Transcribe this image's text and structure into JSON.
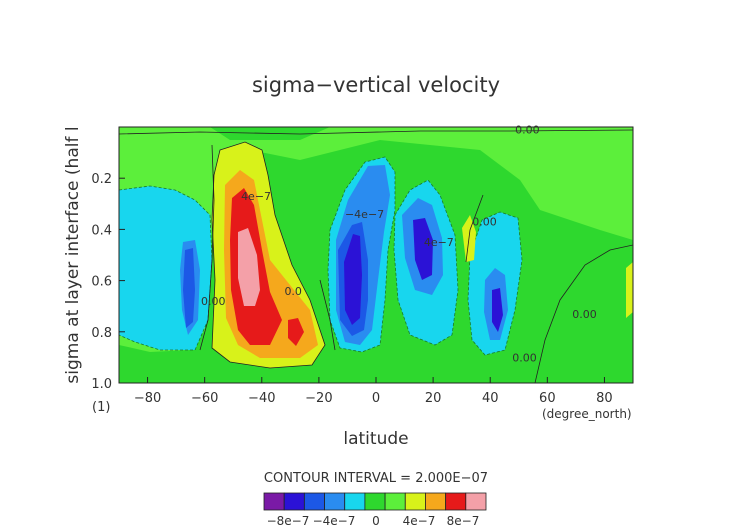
{
  "chart_data": {
    "type": "heatmap",
    "title": "sigma−vertical velocity",
    "xlabel": "latitude",
    "ylabel": "sigma at layer interface (half l",
    "x_unit": "(degree_north)",
    "y_unit": "(1)",
    "xlim": [
      -90,
      90
    ],
    "ylim": [
      1.0,
      0.0
    ],
    "x_ticks": [
      -80,
      -60,
      -40,
      -20,
      0,
      20,
      40,
      60,
      80
    ],
    "x_tick_labels": [
      "−80",
      "−60",
      "−40",
      "−20",
      "0",
      "20",
      "40",
      "60",
      "80"
    ],
    "y_ticks": [
      0.2,
      0.4,
      0.6,
      0.8,
      1.0
    ],
    "y_tick_labels": [
      "0.2",
      "0.4",
      "0.6",
      "0.8",
      "1.0"
    ],
    "contour_interval_text": "CONTOUR INTERVAL = 2.000E−07",
    "contour_interval": 2e-07,
    "colorbar": {
      "colors": [
        "#7a1aa6",
        "#2b12d6",
        "#1c58e6",
        "#2a8cf0",
        "#18d6ee",
        "#2ed82e",
        "#5cef3b",
        "#d8f21a",
        "#f5a81c",
        "#e61a1a",
        "#f4a0a8"
      ],
      "labels": [
        "−8e−7",
        "−4e−7",
        "0",
        "4e−7",
        "8e−7"
      ]
    },
    "cell_features": [
      {
        "lat": -44,
        "sigma": 0.45,
        "value": 9e-07,
        "sign": "positive"
      },
      {
        "lat": -62,
        "sigma": 0.55,
        "value": -5e-07,
        "sign": "negative"
      },
      {
        "lat": -10,
        "sigma": 0.55,
        "value": -9e-07,
        "sign": "negative"
      },
      {
        "lat": 18,
        "sigma": 0.45,
        "value": -9e-07,
        "sign": "negative"
      },
      {
        "lat": 42,
        "sigma": 0.65,
        "value": -8e-07,
        "sign": "negative"
      },
      {
        "lat": 30,
        "sigma": 0.4,
        "value": 2e-07,
        "sign": "positive"
      }
    ],
    "contour_labels": [
      {
        "text": "0.00",
        "lat": 53,
        "sigma": 0.01
      },
      {
        "text": "4e−7",
        "lat": -42,
        "sigma": 0.27
      },
      {
        "text": "−4e−7",
        "lat": -4,
        "sigma": 0.34
      },
      {
        "text": "4e−7",
        "lat": 22,
        "sigma": 0.45
      },
      {
        "text": "0.00",
        "lat": 38,
        "sigma": 0.37
      },
      {
        "text": "0.0",
        "lat": -29,
        "sigma": 0.64
      },
      {
        "text": "0.00",
        "lat": -57,
        "sigma": 0.68
      },
      {
        "text": "0.00",
        "lat": 52,
        "sigma": 0.9
      },
      {
        "text": "0.00",
        "lat": 73,
        "sigma": 0.73
      }
    ]
  }
}
